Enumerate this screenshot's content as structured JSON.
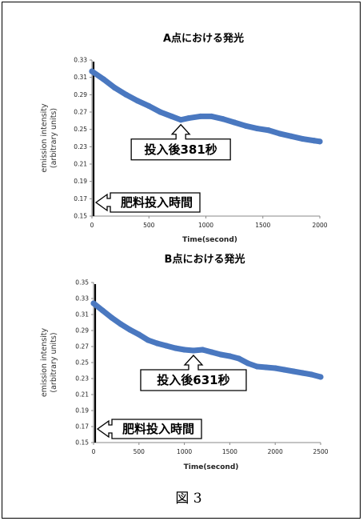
{
  "chart_data": [
    {
      "type": "scatter",
      "title": "A点における発光",
      "xlabel": "Time(second)",
      "ylabel_line1": "emission intensity",
      "ylabel_line2": "(arbitrary units)",
      "xlim": [
        0,
        2000
      ],
      "ylim": [
        0.15,
        0.33
      ],
      "x_ticks": [
        "0",
        "500",
        "1000",
        "1500",
        "2000"
      ],
      "y_ticks": [
        "0.33",
        "0.31",
        "0.29",
        "0.27",
        "0.25",
        "0.23",
        "0.21",
        "0.19",
        "0.17",
        "0.15"
      ],
      "series_color": "#4a78c0",
      "points": [
        [
          0,
          0.317
        ],
        [
          100,
          0.308
        ],
        [
          200,
          0.298
        ],
        [
          300,
          0.29
        ],
        [
          400,
          0.283
        ],
        [
          500,
          0.277
        ],
        [
          600,
          0.27
        ],
        [
          700,
          0.265
        ],
        [
          780,
          0.261
        ],
        [
          850,
          0.263
        ],
        [
          950,
          0.265
        ],
        [
          1050,
          0.265
        ],
        [
          1150,
          0.262
        ],
        [
          1250,
          0.258
        ],
        [
          1350,
          0.254
        ],
        [
          1450,
          0.251
        ],
        [
          1550,
          0.249
        ],
        [
          1650,
          0.245
        ],
        [
          1750,
          0.242
        ],
        [
          1850,
          0.239
        ],
        [
          1950,
          0.237
        ],
        [
          2000,
          0.236
        ]
      ],
      "annotations": {
        "fertilizer_marker": "肥料投入時間",
        "input_point": "投入後381秒"
      }
    },
    {
      "type": "scatter",
      "title": "B点における発光",
      "xlabel": "Time(second)",
      "ylabel_line1": "emission intensity",
      "ylabel_line2": "(arbitrary units)",
      "xlim": [
        0,
        2500
      ],
      "ylim": [
        0.15,
        0.35
      ],
      "x_ticks": [
        "0",
        "500",
        "1000",
        "1500",
        "2000",
        "2500"
      ],
      "y_ticks": [
        "0.35",
        "0.33",
        "0.31",
        "0.29",
        "0.27",
        "0.25",
        "0.23",
        "0.21",
        "0.19",
        "0.17",
        "0.15"
      ],
      "series_color": "#4a78c0",
      "points": [
        [
          0,
          0.324
        ],
        [
          100,
          0.315
        ],
        [
          200,
          0.306
        ],
        [
          300,
          0.298
        ],
        [
          400,
          0.291
        ],
        [
          500,
          0.285
        ],
        [
          600,
          0.278
        ],
        [
          700,
          0.274
        ],
        [
          800,
          0.271
        ],
        [
          900,
          0.268
        ],
        [
          1000,
          0.266
        ],
        [
          1100,
          0.265
        ],
        [
          1200,
          0.266
        ],
        [
          1300,
          0.263
        ],
        [
          1400,
          0.26
        ],
        [
          1500,
          0.258
        ],
        [
          1600,
          0.255
        ],
        [
          1700,
          0.249
        ],
        [
          1800,
          0.245
        ],
        [
          1900,
          0.244
        ],
        [
          2000,
          0.243
        ],
        [
          2100,
          0.241
        ],
        [
          2200,
          0.239
        ],
        [
          2300,
          0.237
        ],
        [
          2400,
          0.235
        ],
        [
          2500,
          0.232
        ]
      ],
      "annotations": {
        "fertilizer_marker": "肥料投入時間",
        "input_point": "投入後631秒"
      }
    }
  ],
  "figure_caption": "図 3"
}
